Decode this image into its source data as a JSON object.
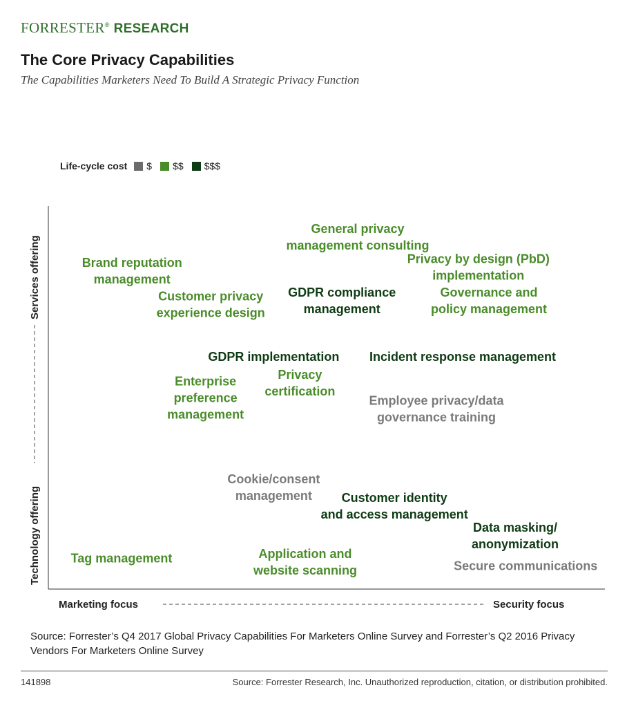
{
  "brand": {
    "part1": "FORRESTER",
    "reg": "®",
    "part2": "RESEARCH"
  },
  "title": "The Core Privacy Capabilities",
  "subtitle": "The Capabilities Marketers Need To Build A Strategic Privacy Function",
  "legend": {
    "title": "Life-cycle cost",
    "items": [
      {
        "label": "$",
        "color": "#6b6b6b"
      },
      {
        "label": "$$",
        "color": "#4a8c2a"
      },
      {
        "label": "$$$",
        "color": "#0f3b14"
      }
    ]
  },
  "chart_data": {
    "type": "scatter",
    "title": "The Core Privacy Capabilities",
    "x_axis": {
      "low_label": "Marketing focus",
      "high_label": "Security focus"
    },
    "y_axis": {
      "low_label": "Technology offering",
      "high_label": "Services offering"
    },
    "legend_placement": "top-left",
    "grid": false,
    "cost_colors": {
      "$": "#7a7a7a",
      "$$": "#4a8c2a",
      "$$$": "#0f3b14"
    },
    "points": [
      {
        "lines": [
          "General privacy",
          "management consulting"
        ],
        "cost": "$$",
        "x": 0.55,
        "y": 0.92
      },
      {
        "lines": [
          "Brand reputation",
          "management"
        ],
        "cost": "$$",
        "x": 0.12,
        "y": 0.83
      },
      {
        "lines": [
          "Privacy by design (PbD)",
          "implementation"
        ],
        "cost": "$$",
        "x": 0.78,
        "y": 0.84
      },
      {
        "lines": [
          "Customer privacy",
          "experience design"
        ],
        "cost": "$$",
        "x": 0.27,
        "y": 0.74
      },
      {
        "lines": [
          "GDPR compliance",
          "management"
        ],
        "cost": "$$$",
        "x": 0.52,
        "y": 0.75
      },
      {
        "lines": [
          "Governance and",
          "policy management"
        ],
        "cost": "$$",
        "x": 0.8,
        "y": 0.75
      },
      {
        "lines": [
          "GDPR implementation"
        ],
        "cost": "$$$",
        "x": 0.39,
        "y": 0.6
      },
      {
        "lines": [
          "Incident response management"
        ],
        "cost": "$$$",
        "x": 0.75,
        "y": 0.6
      },
      {
        "lines": [
          "Privacy",
          "certification"
        ],
        "cost": "$$",
        "x": 0.44,
        "y": 0.53
      },
      {
        "lines": [
          "Enterprise",
          "preference",
          "management"
        ],
        "cost": "$$",
        "x": 0.26,
        "y": 0.49
      },
      {
        "lines": [
          "Employee privacy/data",
          "governance training"
        ],
        "cost": "$",
        "x": 0.7,
        "y": 0.46
      },
      {
        "lines": [
          "Cookie/consent",
          "management"
        ],
        "cost": "$",
        "x": 0.39,
        "y": 0.25
      },
      {
        "lines": [
          "Customer identity",
          "and access management"
        ],
        "cost": "$$$",
        "x": 0.62,
        "y": 0.2
      },
      {
        "lines": [
          "Data masking/",
          "anonymization"
        ],
        "cost": "$$$",
        "x": 0.85,
        "y": 0.12
      },
      {
        "lines": [
          "Tag management"
        ],
        "cost": "$$",
        "x": 0.1,
        "y": 0.06
      },
      {
        "lines": [
          "Application and",
          "website scanning"
        ],
        "cost": "$$",
        "x": 0.45,
        "y": 0.05
      },
      {
        "lines": [
          "Secure communications"
        ],
        "cost": "$",
        "x": 0.87,
        "y": 0.04
      }
    ]
  },
  "source": "Source: Forrester’s Q4 2017 Global Privacy Capabilities For Marketers Online Survey and Forrester’s Q2 2016 Privacy Vendors For Marketers Online Survey",
  "footer": {
    "id": "141898",
    "copyright": "Source: Forrester Research, Inc. Unauthorized reproduction, citation, or distribution prohibited."
  }
}
